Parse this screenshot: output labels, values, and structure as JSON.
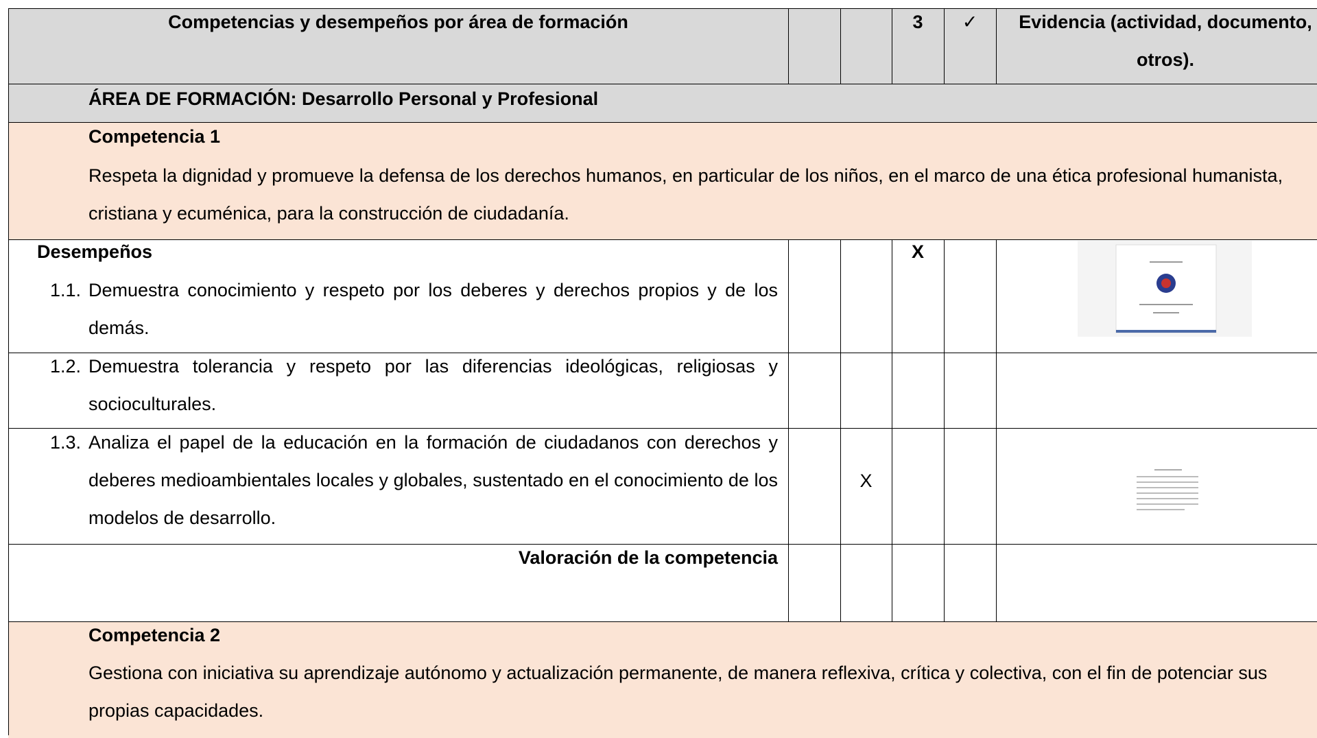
{
  "header": {
    "title": "Competencias y desempeños por área de formación",
    "score": "3",
    "check": "✓",
    "evidence": "Evidencia (actividad, documento, otros)."
  },
  "area": "ÁREA DE FORMACIÓN: Desarrollo Personal y Profesional",
  "competencias": [
    {
      "title": "Competencia 1",
      "description": "Respeta la dignidad y promueve la defensa de los derechos humanos, en particular de los niños, en el marco de una ética profesional humanista, cristiana y ecuménica, para la construcción de ciudadanía.",
      "desempenos_label": "Desempeños",
      "items": [
        {
          "number": "1.1.",
          "text": "Demuestra conocimiento y respeto por los deberes y derechos propios y de los demás.",
          "mark": "X"
        },
        {
          "number": "1.2.",
          "text": "Demuestra tolerancia y respeto por las diferencias ideológicas, religiosas y socioculturales."
        },
        {
          "number": "1.3.",
          "text": "Analiza el papel de la educación en la formación de ciudadanos con derechos y deberes medioambientales locales y globales, sustentado en el conocimiento de los modelos de desarrollo.",
          "mark": "X"
        }
      ],
      "valoracion": "Valoración de la competencia"
    },
    {
      "title": "Competencia 2",
      "description": "Gestiona con iniciativa su aprendizaje autónomo y actualización permanente, de manera reflexiva, crítica y colectiva, con el fin de potenciar sus propias capacidades."
    }
  ]
}
